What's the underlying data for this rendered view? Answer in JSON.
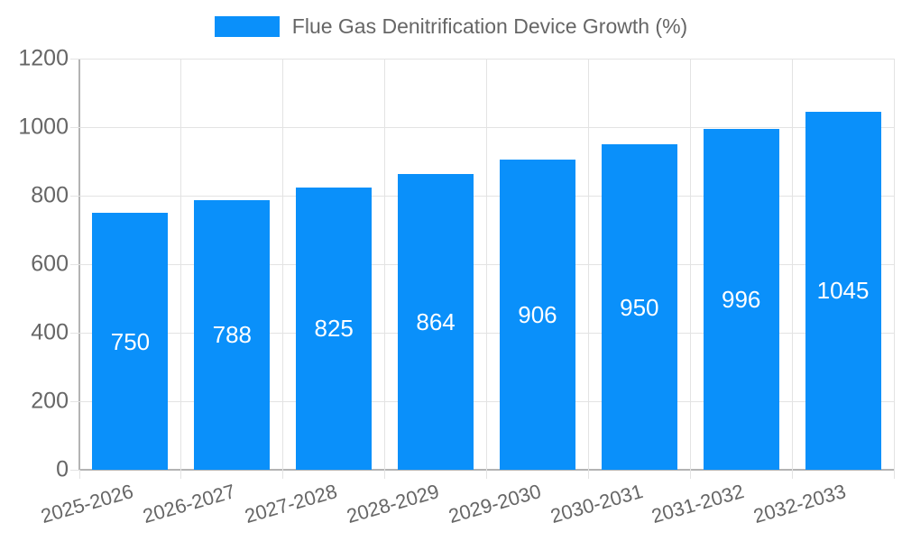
{
  "chart_data": {
    "type": "bar",
    "title": "Flue Gas Denitrification Device Growth (%)",
    "series_name": "Flue Gas Denitrification Device Growth (%)",
    "categories": [
      "2025-2026",
      "2026-2027",
      "2027-2028",
      "2028-2029",
      "2029-2030",
      "2030-2031",
      "2031-2032",
      "2032-2033"
    ],
    "values": [
      750,
      788,
      825,
      864,
      906,
      950,
      996,
      1045
    ],
    "value_labels": [
      "750",
      "788",
      "825",
      "864",
      "906",
      "950",
      "996",
      "1045"
    ],
    "xlabel": "",
    "ylabel": "",
    "ylim": [
      0,
      1200
    ],
    "yticks": [
      0,
      200,
      400,
      600,
      800,
      1000,
      1200
    ],
    "grid": "on",
    "legend_position": "top-center",
    "x_label_rotation_deg": -16,
    "colors": {
      "bar": "#0a90fa",
      "axis_text": "#666666",
      "gridline": "#e3e3e3",
      "axis_line": "#b3b3b3",
      "value_label": "#ffffff",
      "background": "#ffffff"
    }
  }
}
